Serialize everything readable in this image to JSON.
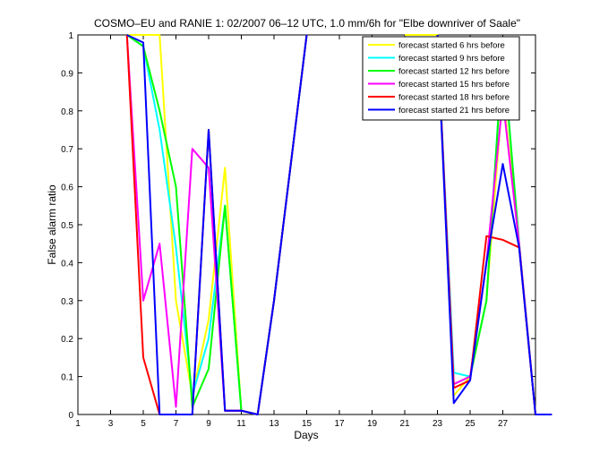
{
  "chart_data": {
    "type": "line",
    "title": "COSMO–EU and RANIE 1: 02/2007 06–12 UTC, 1.0 mm/6h for \"Elbe downriver of Saale\"",
    "xlabel": "Days",
    "ylabel": "False alarm ratio",
    "xlim": [
      1,
      29
    ],
    "ylim": [
      0,
      1
    ],
    "x_ticks": [
      1,
      3,
      5,
      7,
      9,
      11,
      13,
      15,
      17,
      19,
      21,
      23,
      25,
      27
    ],
    "y_ticks": [
      0,
      0.1,
      0.2,
      0.3,
      0.4,
      0.5,
      0.6,
      0.7,
      0.8,
      0.9,
      1
    ],
    "grid": false,
    "legend_position": "top-right",
    "series": [
      {
        "name": "forecast started 6 hrs before",
        "color": "#ffff00",
        "values": [
          null,
          null,
          null,
          1,
          1,
          1,
          0.3,
          0.05,
          0.25,
          0.65,
          0.01,
          0,
          0.3,
          0.65,
          1,
          null,
          null,
          null,
          null,
          null,
          1,
          1,
          1,
          0.05,
          0.1,
          0.3,
          0.85,
          0.45,
          0,
          0
        ]
      },
      {
        "name": "forecast started 9 hrs before",
        "color": "#00ffff",
        "values": [
          null,
          null,
          null,
          1,
          0.97,
          0.75,
          0.44,
          0.05,
          0.2,
          0.55,
          0.01,
          0,
          0.3,
          0.65,
          1,
          null,
          null,
          null,
          null,
          null,
          null,
          null,
          1,
          0.11,
          0.1,
          0.3,
          0.97,
          0.45,
          0,
          0
        ]
      },
      {
        "name": "forecast started 12 hrs before",
        "color": "#00ff00",
        "values": [
          null,
          null,
          null,
          1,
          0.97,
          0.8,
          0.6,
          0.02,
          0.12,
          0.55,
          0.01,
          0,
          0.3,
          0.65,
          1,
          null,
          null,
          null,
          null,
          null,
          null,
          null,
          1,
          0.08,
          0.1,
          0.3,
          0.96,
          0.45,
          0,
          0
        ]
      },
      {
        "name": "forecast started 15 hrs before",
        "color": "#ff00ff",
        "values": [
          null,
          null,
          null,
          1,
          0.3,
          0.45,
          0.02,
          0.7,
          0.65,
          0.01,
          0.01,
          0,
          0.3,
          0.65,
          1,
          null,
          null,
          null,
          null,
          null,
          null,
          null,
          1,
          0.08,
          0.1,
          0.4,
          0.83,
          0.45,
          0,
          0
        ]
      },
      {
        "name": "forecast started 18 hrs before",
        "color": "#ff0000",
        "values": [
          null,
          null,
          null,
          1,
          0.15,
          0,
          0,
          0,
          0.75,
          0.01,
          0.01,
          0,
          0.3,
          0.65,
          1,
          null,
          null,
          null,
          null,
          null,
          null,
          null,
          1,
          0.07,
          0.09,
          0.47,
          0.46,
          0.44,
          0,
          0
        ]
      },
      {
        "name": "forecast started 21 hrs before",
        "color": "#0000ff",
        "values": [
          null,
          null,
          null,
          1,
          0.98,
          0,
          0,
          0,
          0.75,
          0.01,
          0.01,
          0,
          0.3,
          0.65,
          1,
          null,
          null,
          null,
          null,
          null,
          null,
          null,
          1,
          0.03,
          0.09,
          0.4,
          0.66,
          0.44,
          0,
          0
        ]
      }
    ]
  }
}
